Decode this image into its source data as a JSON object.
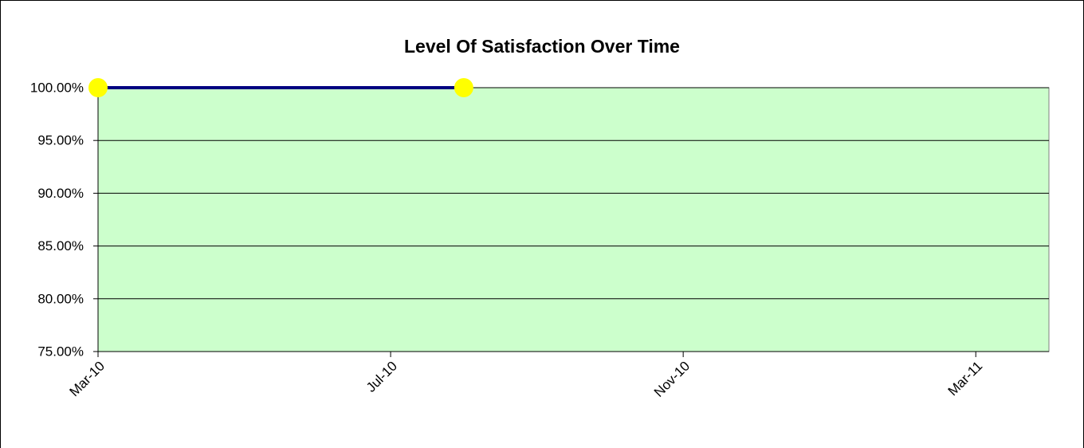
{
  "chart_data": {
    "type": "line",
    "title": "Level Of Satisfaction Over Time",
    "x": [
      "2010-03",
      "2010-08"
    ],
    "series": [
      {
        "name": "Level Of Satisfaction",
        "color": "#000080",
        "marker_color": "#ffff00",
        "values": [
          100,
          100
        ]
      }
    ],
    "xlim": [
      "2010-03",
      "2011-04"
    ],
    "xticks": [
      {
        "value": "2010-03",
        "label": "Mar-10"
      },
      {
        "value": "2010-07",
        "label": "Jul-10"
      },
      {
        "value": "2010-11",
        "label": "Nov-10"
      },
      {
        "value": "2011-03",
        "label": "Mar-11"
      }
    ],
    "ylim": [
      75,
      100
    ],
    "yticks": [
      {
        "value": 75,
        "label": "75.00%"
      },
      {
        "value": 80,
        "label": "80.00%"
      },
      {
        "value": 85,
        "label": "85.00%"
      },
      {
        "value": 90,
        "label": "90.00%"
      },
      {
        "value": 95,
        "label": "95.00%"
      },
      {
        "value": 100,
        "label": "100.00%"
      }
    ],
    "grid": true,
    "plot_background": "#ccffcc"
  }
}
